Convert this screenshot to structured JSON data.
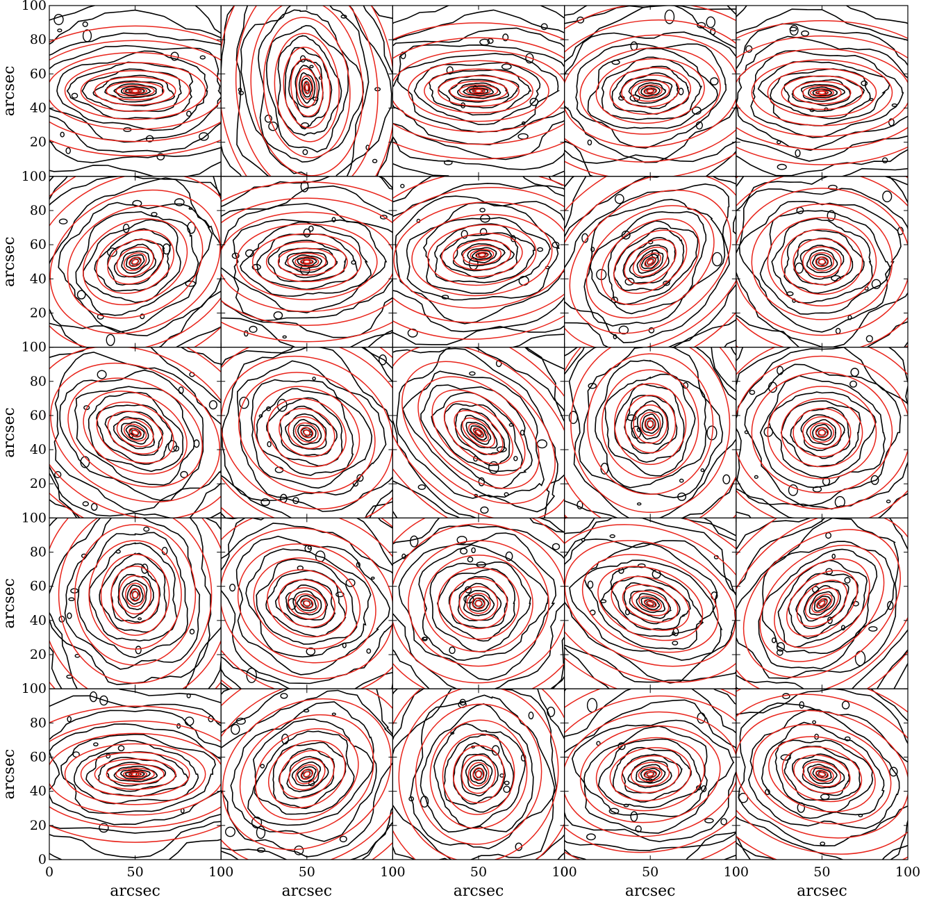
{
  "chart_data": {
    "type": "contour",
    "grid": {
      "rows": 5,
      "cols": 5
    },
    "xlabel": "arcsec",
    "ylabel": "arcsec",
    "xlim": [
      0,
      100
    ],
    "ylim": [
      0,
      100
    ],
    "x_ticks": [
      0,
      50,
      100
    ],
    "y_ticks": [
      0,
      20,
      40,
      60,
      80,
      100
    ],
    "tick_labels": {
      "x": [
        "0",
        "50",
        "100"
      ],
      "y": [
        "0",
        "20",
        "40",
        "60",
        "80",
        "100"
      ]
    },
    "colors": {
      "data_contours": "#000000",
      "model_contours": "#e8231a"
    },
    "series": [
      {
        "role": "observed isophotes",
        "color": "#000000"
      },
      {
        "role": "model isophotes",
        "color": "#e8231a"
      }
    ],
    "panels": [
      {
        "row": 1,
        "col": 1,
        "center": [
          50,
          50
        ],
        "axis_ratio": 0.16,
        "position_angle_deg": 0
      },
      {
        "row": 1,
        "col": 2,
        "center": [
          50,
          52
        ],
        "axis_ratio": 0.45,
        "position_angle_deg": 95
      },
      {
        "row": 1,
        "col": 3,
        "center": [
          50,
          50
        ],
        "axis_ratio": 0.2,
        "position_angle_deg": 0
      },
      {
        "row": 1,
        "col": 4,
        "center": [
          50,
          50
        ],
        "axis_ratio": 0.45,
        "position_angle_deg": 5
      },
      {
        "row": 1,
        "col": 5,
        "center": [
          50,
          49
        ],
        "axis_ratio": 0.25,
        "position_angle_deg": 0
      },
      {
        "row": 2,
        "col": 1,
        "center": [
          50,
          50
        ],
        "axis_ratio": 0.65,
        "position_angle_deg": 25
      },
      {
        "row": 2,
        "col": 2,
        "center": [
          50,
          50
        ],
        "axis_ratio": 0.35,
        "position_angle_deg": 0
      },
      {
        "row": 2,
        "col": 3,
        "center": [
          52,
          54
        ],
        "axis_ratio": 0.4,
        "position_angle_deg": 5
      },
      {
        "row": 2,
        "col": 4,
        "center": [
          50,
          50
        ],
        "axis_ratio": 0.55,
        "position_angle_deg": 35
      },
      {
        "row": 2,
        "col": 5,
        "center": [
          50,
          50
        ],
        "axis_ratio": 0.75,
        "position_angle_deg": 0
      },
      {
        "row": 3,
        "col": 1,
        "center": [
          50,
          50
        ],
        "axis_ratio": 0.6,
        "position_angle_deg": -25
      },
      {
        "row": 3,
        "col": 2,
        "center": [
          50,
          50
        ],
        "axis_ratio": 0.75,
        "position_angle_deg": -25
      },
      {
        "row": 3,
        "col": 3,
        "center": [
          50,
          50
        ],
        "axis_ratio": 0.45,
        "position_angle_deg": -40
      },
      {
        "row": 3,
        "col": 4,
        "center": [
          50,
          55
        ],
        "axis_ratio": 0.85,
        "position_angle_deg": 90
      },
      {
        "row": 3,
        "col": 5,
        "center": [
          50,
          50
        ],
        "axis_ratio": 0.8,
        "position_angle_deg": 0
      },
      {
        "row": 4,
        "col": 1,
        "center": [
          50,
          55
        ],
        "axis_ratio": 0.8,
        "position_angle_deg": 90
      },
      {
        "row": 4,
        "col": 2,
        "center": [
          50,
          50
        ],
        "axis_ratio": 0.75,
        "position_angle_deg": -20
      },
      {
        "row": 4,
        "col": 3,
        "center": [
          50,
          50
        ],
        "axis_ratio": 0.85,
        "position_angle_deg": 0
      },
      {
        "row": 4,
        "col": 4,
        "center": [
          50,
          50
        ],
        "axis_ratio": 0.5,
        "position_angle_deg": -20
      },
      {
        "row": 4,
        "col": 5,
        "center": [
          50,
          50
        ],
        "axis_ratio": 0.55,
        "position_angle_deg": 40
      },
      {
        "row": 5,
        "col": 1,
        "center": [
          50,
          50
        ],
        "axis_ratio": 0.2,
        "position_angle_deg": 0
      },
      {
        "row": 5,
        "col": 2,
        "center": [
          50,
          50
        ],
        "axis_ratio": 0.7,
        "position_angle_deg": 30
      },
      {
        "row": 5,
        "col": 3,
        "center": [
          50,
          50
        ],
        "axis_ratio": 0.85,
        "position_angle_deg": 80
      },
      {
        "row": 5,
        "col": 4,
        "center": [
          50,
          50
        ],
        "axis_ratio": 0.55,
        "position_angle_deg": 8
      },
      {
        "row": 5,
        "col": 5,
        "center": [
          50,
          50
        ],
        "axis_ratio": 0.55,
        "position_angle_deg": -15
      }
    ]
  }
}
